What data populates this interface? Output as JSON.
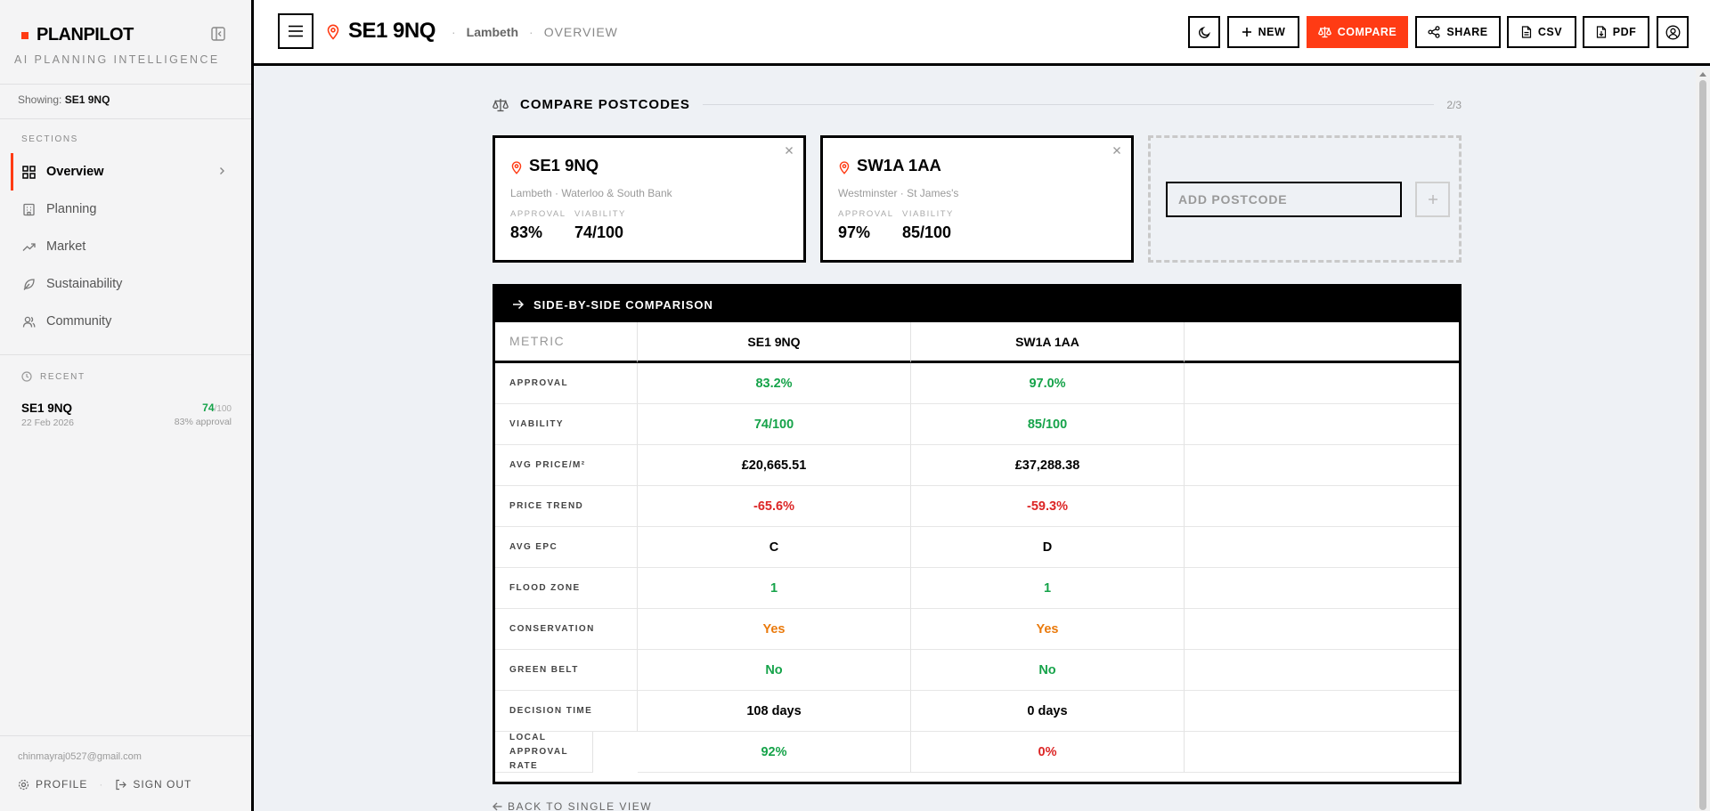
{
  "brand": {
    "name": "PLANPILOT",
    "tagline": "AI PLANNING INTELLIGENCE"
  },
  "showing": {
    "label": "Showing:",
    "value": "SE1 9NQ"
  },
  "sidebar": {
    "sections_label": "SECTIONS",
    "items": [
      {
        "label": "Overview",
        "icon": "grid-icon",
        "active": true
      },
      {
        "label": "Planning",
        "icon": "building-icon"
      },
      {
        "label": "Market",
        "icon": "trending-up-icon"
      },
      {
        "label": "Sustainability",
        "icon": "leaf-icon"
      },
      {
        "label": "Community",
        "icon": "users-icon"
      }
    ],
    "recent_label": "RECENT",
    "recent": [
      {
        "code": "SE1 9NQ",
        "date": "22 Feb 2026",
        "score": "74",
        "score_max": "/100",
        "approval": "83% approval"
      }
    ],
    "email": "chinmayraj0527@gmail.com",
    "profile_label": "PROFILE",
    "signout_label": "SIGN OUT"
  },
  "header": {
    "title": "SE1 9NQ",
    "borough": "Lambeth",
    "view": "OVERVIEW",
    "buttons": {
      "new": "NEW",
      "compare": "COMPARE",
      "share": "SHARE",
      "csv": "CSV",
      "pdf": "PDF"
    }
  },
  "compare": {
    "title": "COMPARE POSTCODES",
    "count": "2/3",
    "cards": [
      {
        "code": "SE1 9NQ",
        "area": "Lambeth · Waterloo & South Bank",
        "approval_label": "APPROVAL",
        "approval": "83%",
        "viability_label": "VIABILITY",
        "viability": "74/100"
      },
      {
        "code": "SW1A 1AA",
        "area": "Westminster · St James's",
        "approval_label": "APPROVAL",
        "approval": "97%",
        "viability_label": "VIABILITY",
        "viability": "85/100"
      }
    ],
    "add_placeholder": "ADD POSTCODE",
    "table_title": "SIDE-BY-SIDE COMPARISON",
    "metric_header": "METRIC",
    "columns": [
      "SE1 9NQ",
      "SW1A 1AA"
    ],
    "rows": [
      {
        "metric": "APPROVAL",
        "values": [
          "83.2%",
          "97.0%"
        ],
        "colors": [
          "green",
          "green"
        ]
      },
      {
        "metric": "VIABILITY",
        "values": [
          "74/100",
          "85/100"
        ],
        "colors": [
          "green",
          "green"
        ]
      },
      {
        "metric": "AVG PRICE/M²",
        "values": [
          "£20,665.51",
          "£37,288.38"
        ],
        "colors": [
          "",
          ""
        ]
      },
      {
        "metric": "PRICE TREND",
        "values": [
          "-65.6%",
          "-59.3%"
        ],
        "colors": [
          "red",
          "red"
        ]
      },
      {
        "metric": "AVG EPC",
        "values": [
          "C",
          "D"
        ],
        "colors": [
          "",
          ""
        ]
      },
      {
        "metric": "FLOOD ZONE",
        "values": [
          "1",
          "1"
        ],
        "colors": [
          "green",
          "green"
        ]
      },
      {
        "metric": "CONSERVATION",
        "values": [
          "Yes",
          "Yes"
        ],
        "colors": [
          "orange",
          "orange"
        ]
      },
      {
        "metric": "GREEN BELT",
        "values": [
          "No",
          "No"
        ],
        "colors": [
          "green",
          "green"
        ]
      },
      {
        "metric": "DECISION TIME",
        "values": [
          "108 days",
          "0 days"
        ],
        "colors": [
          "",
          ""
        ]
      },
      {
        "metric": "LOCAL APPROVAL RATE",
        "values": [
          "92%",
          "0%"
        ],
        "colors": [
          "green",
          "red"
        ]
      }
    ],
    "back_label": "BACK TO SINGLE VIEW"
  },
  "colors": {
    "accent": "#ff3b14",
    "good": "#16a34a",
    "bad": "#dc2626",
    "warn": "#ea7a0c"
  }
}
